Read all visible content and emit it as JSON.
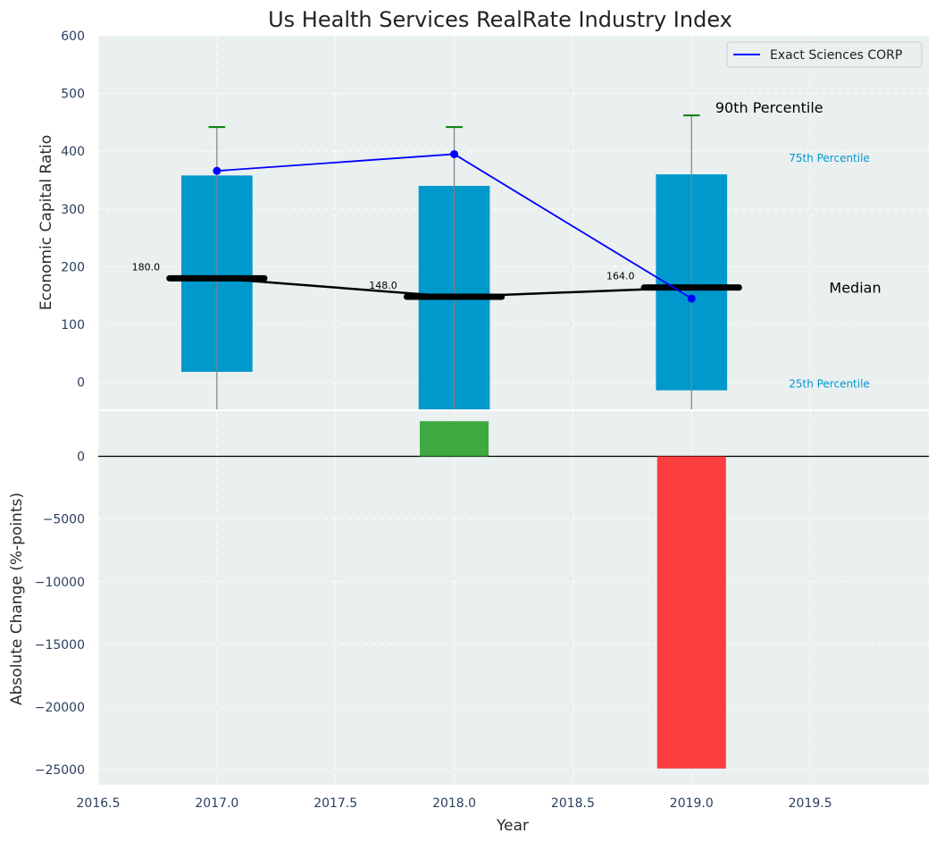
{
  "chart_data": {
    "type": "bar",
    "title": "Us Health Services RealRate Industry Index",
    "xlabel": "Year",
    "xlim": [
      2016.5,
      2020.0
    ],
    "x_ticks": [
      2016.5,
      2017.0,
      2017.5,
      2018.0,
      2018.5,
      2019.0,
      2019.5
    ],
    "x_tick_labels": [
      "2016.5",
      "2017.0",
      "2017.5",
      "2018.0",
      "2018.5",
      "2019.0",
      "2019.5"
    ],
    "grid": true,
    "top_panel": {
      "ylabel": "Economic Capital Ratio",
      "ylim": [
        -47,
        600
      ],
      "y_ticks": [
        0,
        100,
        200,
        300,
        400,
        500,
        600
      ],
      "y_tick_labels": [
        "0",
        "100",
        "200",
        "300",
        "400",
        "500",
        "600"
      ],
      "years": [
        2017,
        2018,
        2019
      ],
      "p25": [
        18,
        -47,
        -14
      ],
      "p75": [
        358,
        340,
        360
      ],
      "p90": [
        442,
        442,
        462
      ],
      "median": [
        180.0,
        148.0,
        164.0
      ],
      "median_labels": [
        "180.0",
        "148.0",
        "164.0"
      ],
      "series": [
        {
          "name": "Exact Sciences CORP",
          "x": [
            2017,
            2018,
            2019
          ],
          "values": [
            366,
            395,
            145
          ],
          "color": "#0000ff"
        }
      ],
      "annotations": {
        "p90": "90th Percentile",
        "p75": "75th Percentile",
        "median": "Median",
        "p25": "25th Percentile"
      },
      "legend_position": "top-right",
      "colors": {
        "bar": "#0099cc",
        "median": "#000000",
        "p90": "#008000",
        "whisker": "#808080",
        "p_label": "#0099cc"
      }
    },
    "bottom_panel": {
      "ylabel": "Absolute Change (%-points)",
      "ylim": [
        -26200,
        3600
      ],
      "y_ticks": [
        0,
        -5000,
        -10000,
        -15000,
        -20000,
        -25000
      ],
      "y_tick_labels": [
        "0",
        "−5000",
        "−10000",
        "−15000",
        "−20000",
        "−25000"
      ],
      "years": [
        2018,
        2019
      ],
      "values": [
        2800,
        -24900
      ],
      "colors": {
        "positive": "#2ca02c",
        "negative": "#ff2a2a"
      }
    }
  }
}
